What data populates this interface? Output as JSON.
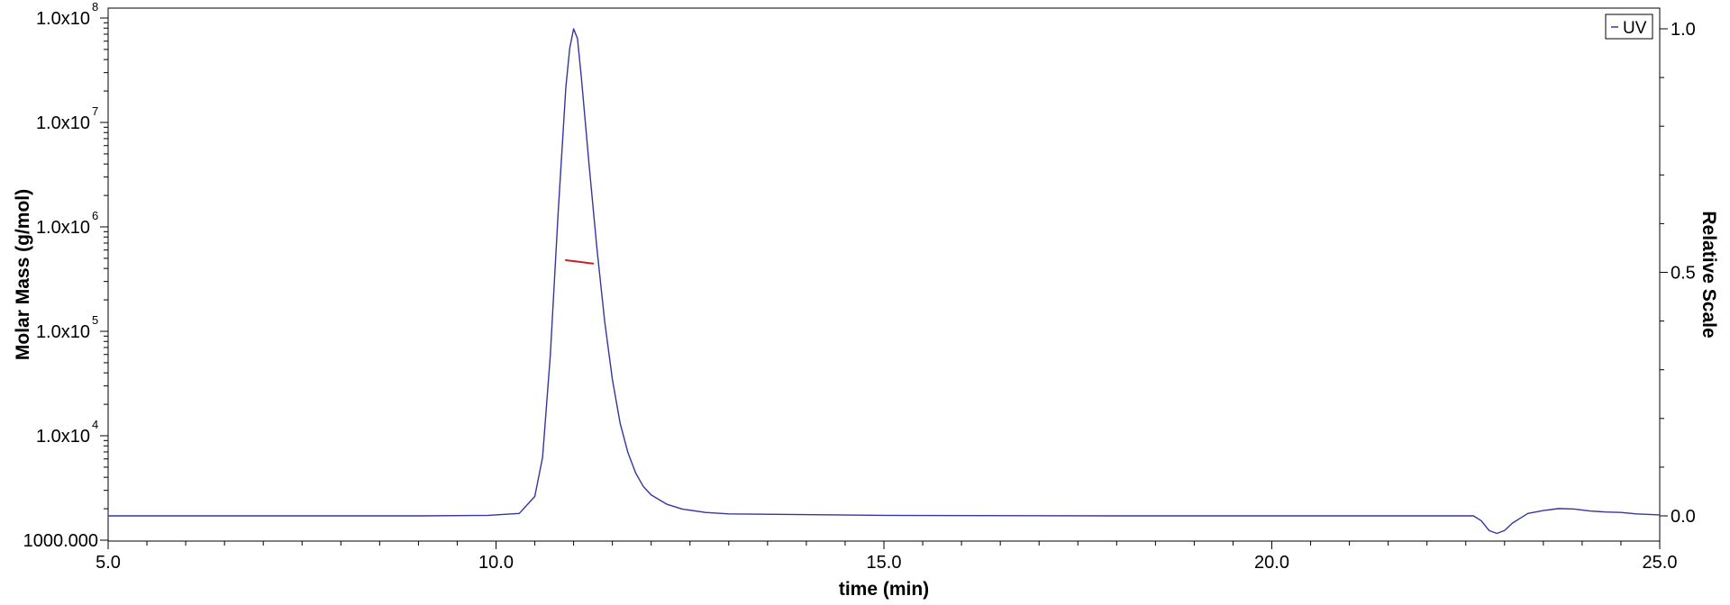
{
  "chart_data": {
    "type": "line",
    "xlabel": "time (min)",
    "ylabel_left": "Molar Mass (g/mol)",
    "ylabel_right": "Relative Scale",
    "xlim": [
      5.0,
      25.0
    ],
    "ylim_left": [
      1000,
      100000000
    ],
    "ylim_left_scale": "log",
    "ylim_right": [
      0.0,
      1.0
    ],
    "x_ticks": [
      {
        "value": 5.0,
        "label": "5.0"
      },
      {
        "value": 10.0,
        "label": "10.0"
      },
      {
        "value": 15.0,
        "label": "15.0"
      },
      {
        "value": 20.0,
        "label": "20.0"
      },
      {
        "value": 25.0,
        "label": "25.0"
      }
    ],
    "y_left_ticks": [
      {
        "value": 1000,
        "label": "1000.000",
        "mantissa": "",
        "exp": ""
      },
      {
        "value": 10000,
        "label": "",
        "mantissa": "1.0x10",
        "exp": "4"
      },
      {
        "value": 100000,
        "label": "",
        "mantissa": "1.0x10",
        "exp": "5"
      },
      {
        "value": 1000000,
        "label": "",
        "mantissa": "1.0x10",
        "exp": "6"
      },
      {
        "value": 10000000,
        "label": "",
        "mantissa": "1.0x10",
        "exp": "7"
      },
      {
        "value": 100000000,
        "label": "",
        "mantissa": "1.0x10",
        "exp": "8"
      }
    ],
    "y_right_ticks": [
      {
        "value": 0.0,
        "label": "0.0"
      },
      {
        "value": 0.5,
        "label": "0.5"
      },
      {
        "value": 1.0,
        "label": "1.0"
      }
    ],
    "grid": false,
    "legend": {
      "position": "top-right",
      "entries": [
        "UV"
      ]
    },
    "series": [
      {
        "name": "UV",
        "axis": "right",
        "color": "#3535a0",
        "x": [
          5.0,
          9.0,
          9.9,
          10.3,
          10.5,
          10.6,
          10.7,
          10.8,
          10.9,
          10.95,
          11.0,
          11.05,
          11.1,
          11.2,
          11.3,
          11.4,
          11.5,
          11.6,
          11.7,
          11.8,
          11.9,
          12.0,
          12.2,
          12.4,
          12.7,
          13.0,
          15.0,
          18.0,
          22.6,
          22.7,
          22.8,
          22.9,
          23.0,
          23.1,
          23.2,
          23.3,
          23.5,
          23.7,
          23.9,
          24.1,
          24.3,
          24.5,
          24.7,
          25.0
        ],
        "y": [
          0.0,
          0.0,
          0.001,
          0.005,
          0.04,
          0.12,
          0.33,
          0.62,
          0.88,
          0.96,
          1.0,
          0.98,
          0.9,
          0.72,
          0.55,
          0.4,
          0.28,
          0.19,
          0.13,
          0.088,
          0.06,
          0.043,
          0.024,
          0.014,
          0.007,
          0.004,
          0.001,
          0.0,
          0.0,
          -0.01,
          -0.03,
          -0.036,
          -0.03,
          -0.015,
          -0.005,
          0.005,
          0.011,
          0.015,
          0.014,
          0.01,
          0.008,
          0.007,
          0.004,
          0.002
        ]
      },
      {
        "name": "Molar Mass",
        "axis": "left",
        "color": "#cc2020",
        "x": [
          10.9,
          11.0,
          11.1,
          11.2,
          11.25
        ],
        "y": [
          480000,
          470000,
          460000,
          450000,
          445000
        ]
      }
    ]
  }
}
